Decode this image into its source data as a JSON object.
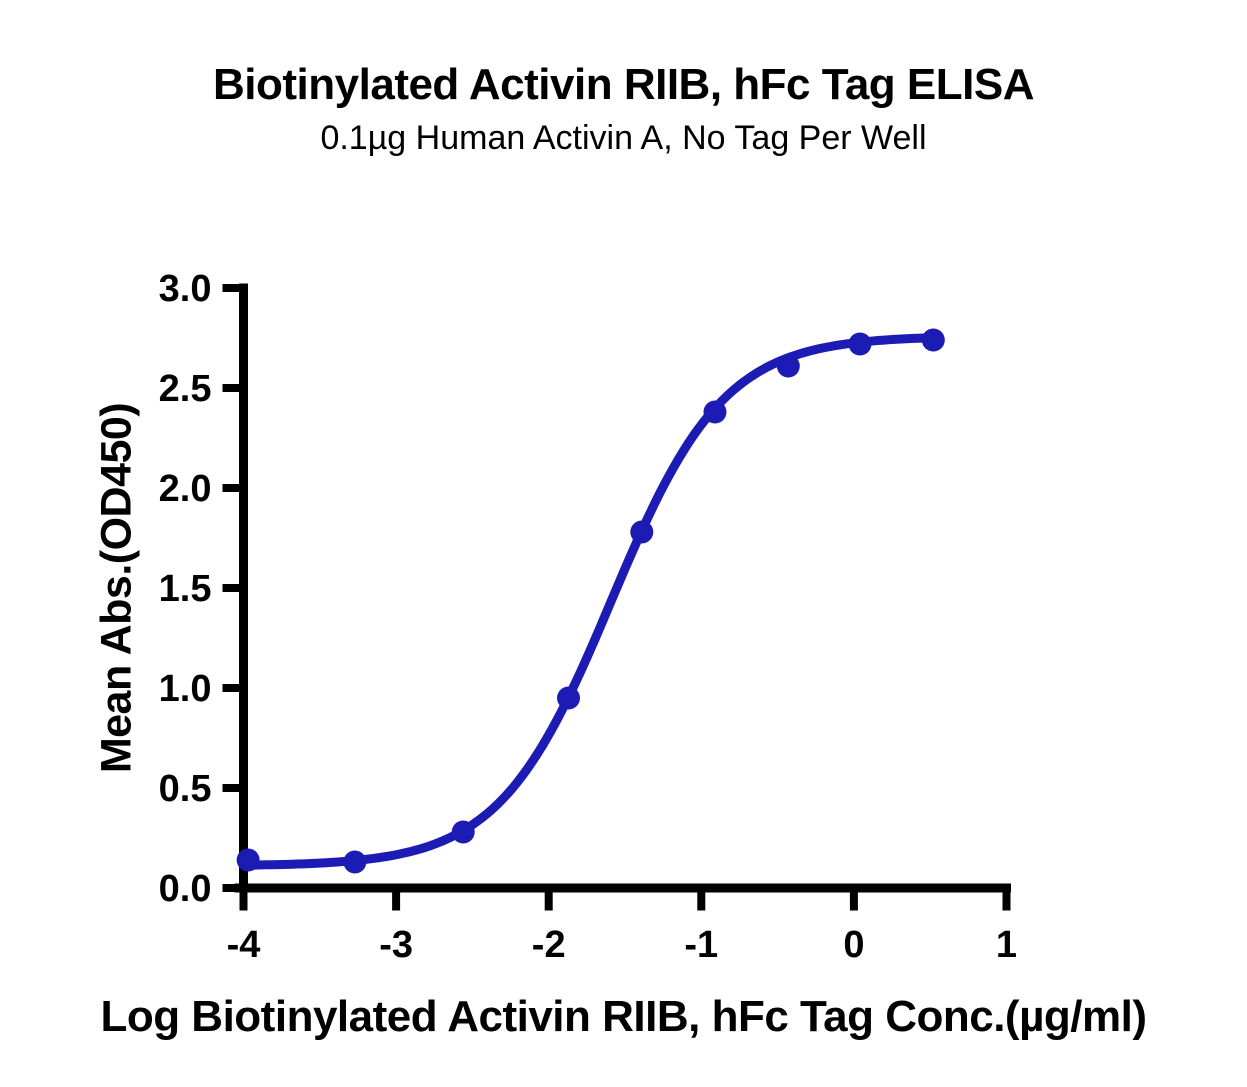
{
  "chart_data": {
    "type": "scatter",
    "title": "Biotinylated Activin RIIB, hFc Tag ELISA",
    "subtitle": "0.1µg Human Activin A, No Tag Per Well",
    "xlabel": "Log Biotinylated Activin RIIB, hFc Tag Conc.(µg/ml)",
    "ylabel": "Mean Abs.(OD450)",
    "xlim": [
      -4,
      1
    ],
    "ylim": [
      0,
      3
    ],
    "x_ticks": [
      -4,
      -3,
      -2,
      -1,
      0,
      1
    ],
    "x_tick_labels": [
      "-4",
      "-3",
      "-2",
      "-1",
      "0",
      "1"
    ],
    "y_ticks": [
      0,
      0.5,
      1,
      1.5,
      2,
      2.5,
      3
    ],
    "y_tick_labels": [
      "0.0",
      "0.5",
      "1.0",
      "1.5",
      "2.0",
      "2.5",
      "3.0"
    ],
    "grid": false,
    "legend": "none",
    "points": {
      "x": [
        -3.97,
        -3.27,
        -2.56,
        -1.87,
        -1.39,
        -0.91,
        -0.43,
        0.04,
        0.52
      ],
      "y": [
        0.14,
        0.13,
        0.28,
        0.95,
        1.78,
        2.38,
        2.61,
        2.72,
        2.74
      ]
    },
    "fit_4pl": {
      "bottom": 0.11,
      "top": 2.76,
      "logEC50": -1.59,
      "hill": 1.18
    },
    "curve_color": "#1c1cb4",
    "axis_color": "#000000",
    "marker_radius": 11.5,
    "line_width": 9
  }
}
